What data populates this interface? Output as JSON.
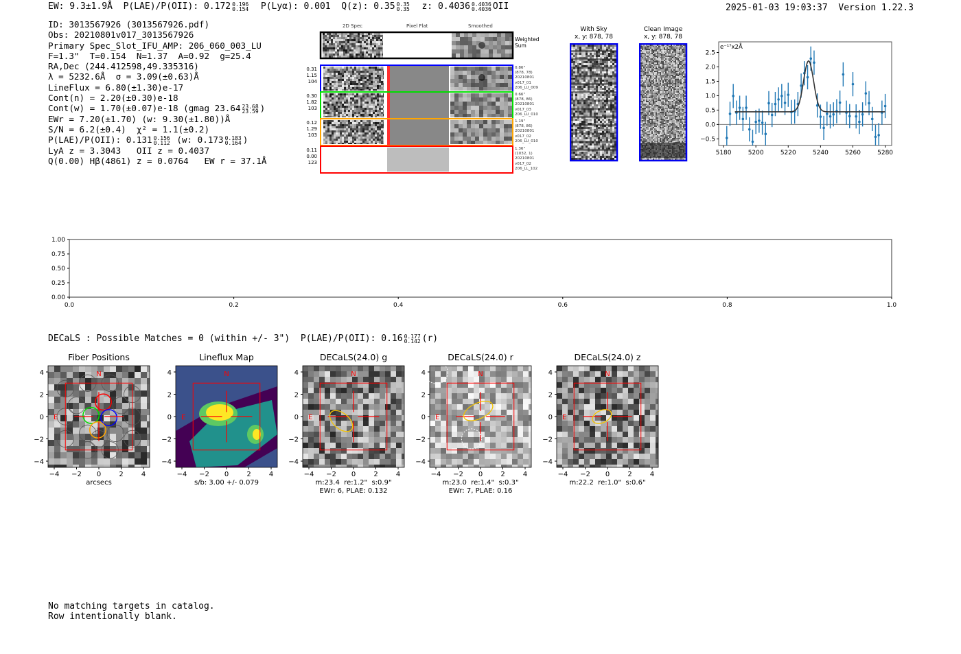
{
  "header": {
    "ew": "EW: 9.3±1.9Å",
    "plae": "P(LAE)/P(OII): 0.172",
    "plae_hi": "0.196",
    "plae_lo": "0.154",
    "plya": "P(Lyα): 0.001",
    "qz": "Q(z): 0.35",
    "qz_hi": "0.35",
    "qz_lo": "0.35",
    "z": "z: 0.4036",
    "z_hi": "0.4036",
    "z_lo": "0.4036",
    "z_line": "OII",
    "datetime": "2025-01-03 19:03:37",
    "version": "Version 1.22.3"
  },
  "info": {
    "id": "ID: 3013567926 (3013567926.pdf)",
    "obs": "Obs: 20210801v017_3013567926",
    "primary": "Primary Spec_Slot_IFU_AMP: 206_060_003_LU",
    "params": "F=1.3\"  T=0.154  N=1.37  A=0.92  g=25.4",
    "radec": "RA,Dec (244.412598,49.335316)",
    "lambda": "λ = 5232.6Å  σ = 3.09(±0.63)Å",
    "lineflux": "LineFlux = 6.80(±1.30)e-17",
    "cont_n": "Cont(n) = 2.20(±0.30)e-18",
    "cont_w": "Cont(w) = 1.70(±0.07)e-18 (gmag 23.64",
    "gmag_hi": "23.68",
    "gmag_lo": "23.59",
    "cont_w_end": ")",
    "ewr": "EWr = 7.20(±1.70) (w: 9.30(±1.80))Å",
    "sn": "S/N = 6.2(±0.4)  χ² = 1.1(±0.2)",
    "plae": "P(LAE)/P(OII): 0.131",
    "plae_hi": "0.156",
    "plae_lo": "0.112",
    "plae_w": "(w: 0.173",
    "plae_w_hi": "0.183",
    "plae_w_lo": "0.164",
    "plae_end": ")",
    "lya": "LyA z = 3.3043   OII z = 0.4037",
    "hb": "Q(0.00) Hβ(4861) z = 0.0764   EW r = 37.1Å"
  },
  "spec2d": {
    "headers": [
      "2D Spec",
      "Pixel Flat",
      "Smoothed"
    ],
    "weighted_label": "Weighted\nSum",
    "rows": [
      {
        "color": "#0000ff",
        "left": "0.31\n1.15\n104",
        "right": "0.86\"\n(878, 78)\n20210801\nv017_01\n206_LU_009"
      },
      {
        "color": "#00dd00",
        "left": "0.30\n1.82\n103",
        "right": "0.66\"\n(878, 86)\n20210801\nv017_03\n206_LU_010"
      },
      {
        "color": "#ffa500",
        "left": "0.12\n1.29\n103",
        "right": "1.19\"\n(878, 86)\n20210801\nv017_02\n206_LU_010"
      },
      {
        "color": "#ff0000",
        "left": "0.11\n0.00\n123",
        "right": "1.36\"\n(1032, 1)\n20210801\nv017_02\n206_LL_102"
      }
    ]
  },
  "sky": {
    "with_sky": "With Sky",
    "with_sky_coord": "x, y: 878, 78",
    "clean": "Clean Image",
    "clean_coord": "x, y: 878, 78"
  },
  "chart_data": [
    {
      "type": "scatter",
      "title": "",
      "ylabel_text": "e⁻¹⁷x2Å",
      "xlim": [
        5177,
        5284
      ],
      "ylim": [
        -0.73,
        2.87
      ],
      "xticks": [
        5180,
        5200,
        5220,
        5240,
        5260,
        5280
      ],
      "yticks": [
        -0.5,
        0.0,
        0.5,
        1.0,
        1.5,
        2.0,
        2.5
      ],
      "ytick_labels": [
        "−0.5",
        "0.0",
        "0.5",
        "1.0",
        "1.5",
        "2.0",
        "2.5"
      ],
      "x": [
        5182,
        5184,
        5186,
        5188,
        5190,
        5192,
        5194,
        5196,
        5198,
        5200,
        5202,
        5204,
        5206,
        5208,
        5210,
        5212,
        5214,
        5216,
        5218,
        5220,
        5222,
        5224,
        5226,
        5228,
        5230,
        5232,
        5234,
        5236,
        5238,
        5240,
        5242,
        5244,
        5246,
        5248,
        5250,
        5252,
        5254,
        5256,
        5258,
        5260,
        5262,
        5264,
        5266,
        5268,
        5270,
        5272,
        5274,
        5276,
        5278,
        5280
      ],
      "y": [
        -0.47,
        0.37,
        0.99,
        0.41,
        0.58,
        0.19,
        0.58,
        -0.17,
        -0.6,
        0.09,
        0.13,
        0.06,
        -0.33,
        0.74,
        0.33,
        0.71,
        0.87,
        0.99,
        0.75,
        1.03,
        0.43,
        0.45,
        0.71,
        1.35,
        1.78,
        1.64,
        2.29,
        2.15,
        0.66,
        0.27,
        -0.12,
        0.37,
        0.28,
        0.35,
        0.46,
        0.76,
        1.74,
        0.41,
        0.29,
        1.4,
        0.28,
        0.09,
        0.35,
        1.08,
        0.74,
        0.19,
        -0.43,
        -0.37,
        0.41,
        0.64
      ],
      "yerr": 0.42,
      "fit": {
        "continuum": 0.44,
        "amplitude": 1.77,
        "center": 5232.6,
        "sigma": 3.09,
        "range": [
          5187,
          5280
        ]
      }
    },
    {
      "type": "line",
      "title": "",
      "xlim": [
        0,
        1
      ],
      "ylim": [
        0,
        1
      ],
      "xticks": [
        "0.0",
        "0.2",
        "0.4",
        "0.6",
        "0.8",
        "1.0"
      ],
      "yticks": [
        "0.00",
        "0.25",
        "0.50",
        "0.75",
        "1.00"
      ]
    }
  ],
  "decals": {
    "summary": "DECaLS : Possible Matches = 0 (within +/- 3\")  P(LAE)/P(OII): 0.16",
    "plae_hi": "0.177",
    "plae_lo": "0.142",
    "band": "(r)"
  },
  "cutouts": [
    {
      "title": "Fiber Positions",
      "lines": [
        "arcsecs"
      ]
    },
    {
      "title": "Lineflux Map",
      "lines": [
        "s/b: 3.00 +/- 0.079"
      ]
    },
    {
      "title": "DECaLS(24.0) g",
      "lines": [
        "m:23.4  re:1.2\"  s:0.9\"",
        "EWr: 6, PLAE: 0.132"
      ]
    },
    {
      "title": "DECaLS(24.0) r",
      "lines": [
        "m:23.0  re:1.4\"  s:0.3\"",
        "EWr: 7, PLAE: 0.16"
      ]
    },
    {
      "title": "DECaLS(24.0) z",
      "lines": [
        "m:22.2  re:1.0\"  s:0.6\""
      ]
    }
  ],
  "cutout_ticks": [
    "−4",
    "−2",
    "0",
    "2",
    "4"
  ],
  "compass": {
    "n": "N",
    "e": "E"
  },
  "footer": {
    "line1": "No matching targets in catalog.",
    "line2": "Row intentionally blank."
  }
}
